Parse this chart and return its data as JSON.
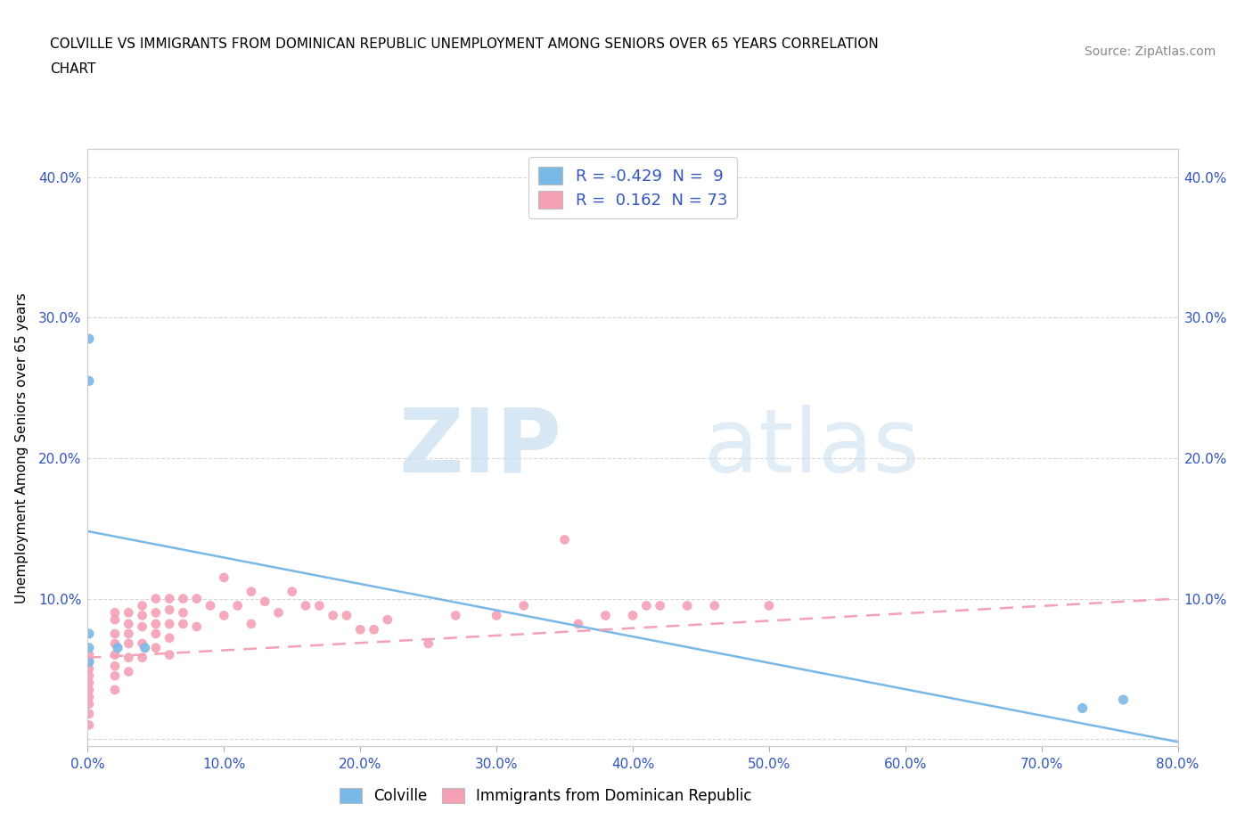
{
  "title_line1": "COLVILLE VS IMMIGRANTS FROM DOMINICAN REPUBLIC UNEMPLOYMENT AMONG SENIORS OVER 65 YEARS CORRELATION",
  "title_line2": "CHART",
  "source": "Source: ZipAtlas.com",
  "ylabel": "Unemployment Among Seniors over 65 years",
  "xlim": [
    0,
    0.8
  ],
  "ylim": [
    -0.005,
    0.42
  ],
  "watermark_zip": "ZIP",
  "watermark_atlas": "atlas",
  "blue_color": "#7ab8e8",
  "pink_color": "#f4a0b5",
  "blue_R": -0.429,
  "blue_N": 9,
  "pink_R": 0.162,
  "pink_N": 73,
  "blue_scatter_x": [
    0.001,
    0.001,
    0.001,
    0.001,
    0.001,
    0.022,
    0.042,
    0.73,
    0.76
  ],
  "blue_scatter_y": [
    0.285,
    0.255,
    0.075,
    0.065,
    0.055,
    0.065,
    0.065,
    0.022,
    0.028
  ],
  "pink_scatter_x": [
    0.001,
    0.001,
    0.001,
    0.001,
    0.001,
    0.001,
    0.001,
    0.001,
    0.001,
    0.001,
    0.02,
    0.02,
    0.02,
    0.02,
    0.02,
    0.02,
    0.02,
    0.02,
    0.03,
    0.03,
    0.03,
    0.03,
    0.03,
    0.03,
    0.04,
    0.04,
    0.04,
    0.04,
    0.04,
    0.05,
    0.05,
    0.05,
    0.05,
    0.05,
    0.06,
    0.06,
    0.06,
    0.06,
    0.06,
    0.07,
    0.07,
    0.07,
    0.08,
    0.08,
    0.09,
    0.1,
    0.1,
    0.11,
    0.12,
    0.12,
    0.13,
    0.14,
    0.15,
    0.16,
    0.17,
    0.18,
    0.19,
    0.2,
    0.21,
    0.22,
    0.25,
    0.27,
    0.3,
    0.32,
    0.35,
    0.36,
    0.38,
    0.4,
    0.41,
    0.42,
    0.44,
    0.46,
    0.5
  ],
  "pink_scatter_y": [
    0.06,
    0.055,
    0.05,
    0.045,
    0.04,
    0.035,
    0.03,
    0.025,
    0.018,
    0.01,
    0.09,
    0.085,
    0.075,
    0.068,
    0.06,
    0.052,
    0.045,
    0.035,
    0.09,
    0.082,
    0.075,
    0.068,
    0.058,
    0.048,
    0.095,
    0.088,
    0.08,
    0.068,
    0.058,
    0.1,
    0.09,
    0.082,
    0.075,
    0.065,
    0.1,
    0.092,
    0.082,
    0.072,
    0.06,
    0.1,
    0.09,
    0.082,
    0.1,
    0.08,
    0.095,
    0.115,
    0.088,
    0.095,
    0.105,
    0.082,
    0.098,
    0.09,
    0.105,
    0.095,
    0.095,
    0.088,
    0.088,
    0.078,
    0.078,
    0.085,
    0.068,
    0.088,
    0.088,
    0.095,
    0.142,
    0.082,
    0.088,
    0.088,
    0.095,
    0.095,
    0.095,
    0.095,
    0.095
  ],
  "blue_line_y_start": 0.148,
  "blue_line_y_end": -0.002,
  "pink_line_y_start": 0.058,
  "pink_line_y_end": 0.1,
  "grid_color": "#d8d8d8",
  "background_color": "#ffffff",
  "legend_label_blue": "Colville",
  "legend_label_pink": "Immigrants from Dominican Republic",
  "xtick_vals": [
    0.0,
    0.1,
    0.2,
    0.3,
    0.4,
    0.5,
    0.6,
    0.7,
    0.8
  ],
  "ytick_vals": [
    0.0,
    0.1,
    0.2,
    0.3,
    0.4
  ],
  "tick_color": "#3355bb"
}
